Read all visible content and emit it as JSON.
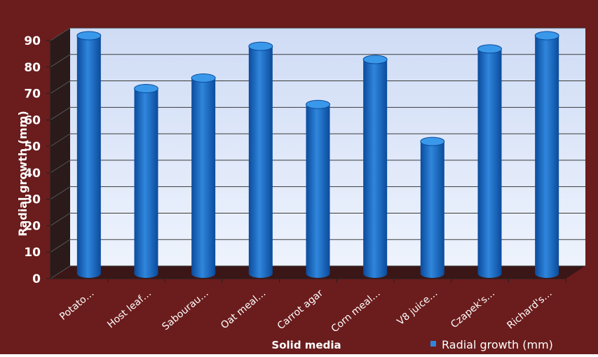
{
  "chart_data": {
    "type": "bar",
    "categories": [
      "Potato…",
      "Host leaf…",
      "Sabourau…",
      "Oat meal…",
      "Carrot agar",
      "Corn meal…",
      "V8 juice…",
      "Czapek's…",
      "Richard's…"
    ],
    "series": [
      {
        "name": "Radial growth (mm)",
        "values": [
          90,
          70,
          74,
          86,
          64,
          81,
          50,
          85,
          90
        ]
      }
    ],
    "xlabel": "Solid media",
    "ylabel": "Radial growth (mm)",
    "ylim": [
      0,
      90
    ],
    "yticks": [
      0,
      10,
      20,
      30,
      40,
      50,
      60,
      70,
      80,
      90
    ],
    "grid": true,
    "legend": "bottom-right"
  },
  "colors": {
    "background": "#6b1c1c",
    "plot_top": "#cfdcf5",
    "plot_bottom": "#eef3fd",
    "bar_light": "#2f86dc",
    "bar_dark": "#0b4b9c",
    "bar_top": "#3a98ea",
    "side_wall": "#2a1a1a",
    "floor": "#3b1616",
    "text": "#ffffff",
    "axis_text": "#111111"
  }
}
